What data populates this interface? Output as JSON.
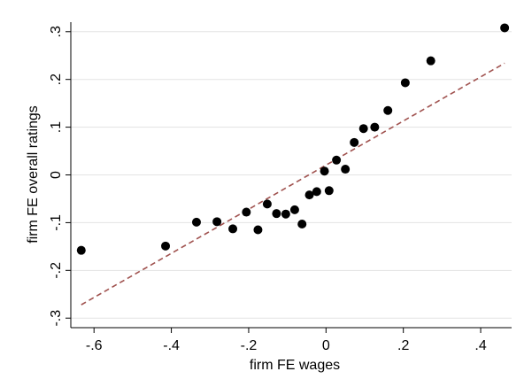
{
  "chart_data": {
    "type": "scatter",
    "title": "",
    "xlabel": "firm FE wages",
    "ylabel": "firm FE overall ratings",
    "xlim": [
      -0.66,
      0.48
    ],
    "ylim": [
      -0.32,
      0.32
    ],
    "xticks": [
      -0.6,
      -0.4,
      -0.2,
      0,
      0.2,
      0.4
    ],
    "xtick_labels": [
      "-.6",
      "-.4",
      "-.2",
      "0",
      ".2",
      ".4"
    ],
    "yticks": [
      -0.3,
      -0.2,
      -0.1,
      0,
      0.1,
      0.2,
      0.3
    ],
    "ytick_labels": [
      "-.3",
      "-.2",
      "-.1",
      "0",
      ".1",
      ".2",
      ".3"
    ],
    "grid": "horizontal",
    "series": [
      {
        "type": "scatter",
        "x": [
          -0.633,
          -0.415,
          -0.335,
          -0.282,
          -0.241,
          -0.206,
          -0.176,
          -0.152,
          -0.128,
          -0.104,
          -0.081,
          -0.062,
          -0.043,
          -0.024,
          -0.004,
          0.008,
          0.027,
          0.05,
          0.073,
          0.097,
          0.126,
          0.16,
          0.205,
          0.271,
          0.462
        ],
        "y": [
          -0.158,
          -0.149,
          -0.099,
          -0.098,
          -0.113,
          -0.078,
          -0.115,
          -0.061,
          -0.081,
          -0.082,
          -0.073,
          -0.103,
          -0.042,
          -0.035,
          0.008,
          -0.033,
          0.031,
          0.012,
          0.068,
          0.097,
          0.1,
          0.135,
          0.193,
          0.239,
          0.308
        ],
        "color": "#000000"
      },
      {
        "type": "line",
        "style": "dashed",
        "x": [
          -0.633,
          0.462
        ],
        "y": [
          -0.272,
          0.234
        ],
        "color": "#A0524F"
      }
    ]
  }
}
